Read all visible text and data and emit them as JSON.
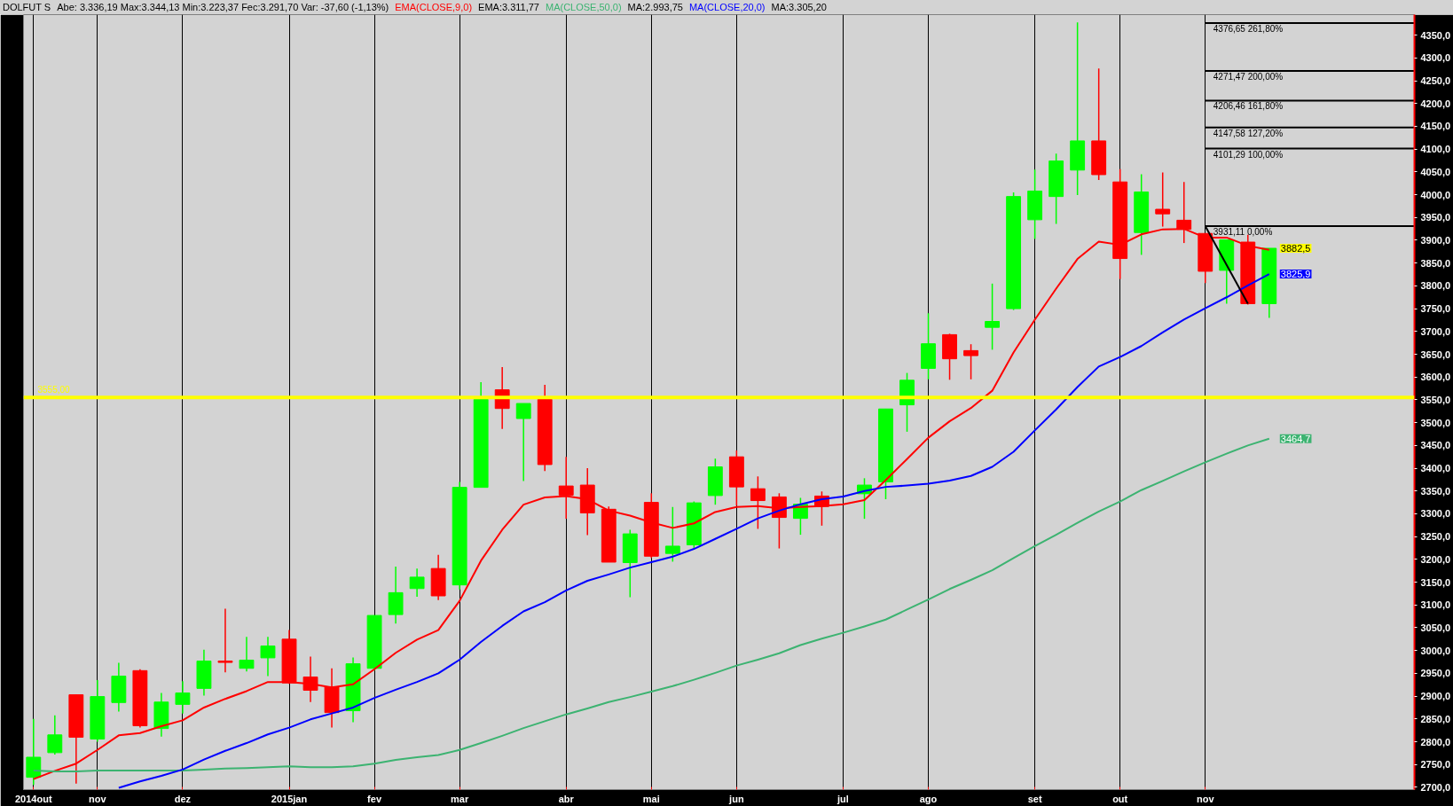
{
  "chart_data": {
    "type": "candlestick",
    "title": "DOLFUT S",
    "subtitle": "Abe: 3.336,19 Max:3.344,13 Min:3.223,37 Fec:3.291,70 Var: -37,60 (-1,13%)",
    "x": [
      "2014-10-13",
      "2014-10-20",
      "2014-10-27",
      "2014-11-03",
      "2014-11-10",
      "2014-11-17",
      "2014-11-24",
      "2014-12-01",
      "2014-12-08",
      "2014-12-15",
      "2014-12-22",
      "2014-12-29",
      "2015-01-05",
      "2015-01-12",
      "2015-01-19",
      "2015-01-26",
      "2015-02-02",
      "2015-02-09",
      "2015-02-16",
      "2015-02-23",
      "2015-03-02",
      "2015-03-09",
      "2015-03-16",
      "2015-03-23",
      "2015-03-30",
      "2015-04-06",
      "2015-04-13",
      "2015-04-20",
      "2015-04-27",
      "2015-05-04",
      "2015-05-11",
      "2015-05-18",
      "2015-05-25",
      "2015-06-01",
      "2015-06-08",
      "2015-06-15",
      "2015-06-22",
      "2015-06-29",
      "2015-07-06",
      "2015-07-13",
      "2015-07-20",
      "2015-07-27",
      "2015-08-03",
      "2015-08-10",
      "2015-08-17",
      "2015-08-24",
      "2015-08-31",
      "2015-09-07",
      "2015-09-14",
      "2015-09-21",
      "2015-09-28",
      "2015-10-05",
      "2015-10-12",
      "2015-10-19",
      "2015-10-26",
      "2015-11-02",
      "2015-11-09",
      "2015-11-16",
      "2015-11-23"
    ],
    "series": [
      {
        "ohlc": [
          [
            2722,
            2850,
            2705,
            2766
          ],
          [
            2776,
            2858,
            2772,
            2815
          ],
          [
            2903,
            2903,
            2708,
            2810
          ],
          [
            2806,
            2935,
            2800,
            2899
          ],
          [
            2886,
            2973,
            2866,
            2944
          ],
          [
            2956,
            2959,
            2831,
            2835
          ],
          [
            2829,
            2907,
            2811,
            2887
          ],
          [
            2882,
            2933,
            2862,
            2907
          ],
          [
            2917,
            3002,
            2901,
            2977
          ],
          [
            2977,
            3092,
            2952,
            2974
          ],
          [
            2961,
            3030,
            2954,
            2979
          ],
          [
            2984,
            3030,
            2944,
            3010
          ],
          [
            3025,
            3045,
            2927,
            2929
          ],
          [
            2942,
            2987,
            2887,
            2913
          ],
          [
            2920,
            2961,
            2831,
            2864
          ],
          [
            2868,
            2985,
            2843,
            2971
          ],
          [
            2961,
            3077,
            2956,
            3077
          ],
          [
            3079,
            3184,
            3059,
            3127
          ],
          [
            3136,
            3180,
            3118,
            3161
          ],
          [
            3180,
            3210,
            3111,
            3120
          ],
          [
            3144,
            3370,
            3134,
            3358
          ],
          [
            3358,
            3589,
            3358,
            3551
          ],
          [
            3572,
            3622,
            3486,
            3531
          ],
          [
            3509,
            3542,
            3372,
            3542
          ],
          [
            3551,
            3583,
            3394,
            3408
          ],
          [
            3361,
            3425,
            3289,
            3341
          ],
          [
            3363,
            3400,
            3253,
            3302
          ],
          [
            3310,
            3316,
            3194,
            3194
          ],
          [
            3193,
            3265,
            3117,
            3256
          ],
          [
            3325,
            3345,
            3203,
            3207
          ],
          [
            3213,
            3315,
            3195,
            3229
          ],
          [
            3232,
            3327,
            3225,
            3324
          ],
          [
            3340,
            3421,
            3320,
            3403
          ],
          [
            3425,
            3439,
            3318,
            3359
          ],
          [
            3355,
            3382,
            3267,
            3329
          ],
          [
            3337,
            3345,
            3224,
            3292
          ],
          [
            3290,
            3335,
            3254,
            3321
          ],
          [
            3339,
            3349,
            3274,
            3316
          ],
          null,
          [
            3344,
            3378,
            3289,
            3363
          ],
          [
            3370,
            3530,
            3332,
            3530
          ],
          [
            3539,
            3609,
            3480,
            3593
          ],
          [
            3619,
            3740,
            3595,
            3673
          ],
          [
            3693,
            3695,
            3594,
            3640
          ],
          [
            3658,
            3672,
            3595,
            3647
          ],
          [
            3709,
            3805,
            3660,
            3722
          ],
          [
            3750,
            4005,
            3747,
            3996
          ],
          [
            3945,
            4055,
            3903,
            4008
          ],
          [
            3996,
            4090,
            3936,
            4074
          ],
          [
            4054,
            4378,
            3999,
            4118
          ],
          [
            4118,
            4277,
            4032,
            4044
          ],
          [
            4028,
            4056,
            3815,
            3860
          ],
          [
            3917,
            4045,
            3868,
            4006
          ],
          [
            3968,
            4049,
            3930,
            3958
          ],
          [
            3944,
            4028,
            3894,
            3924
          ],
          [
            3915,
            3915,
            3806,
            3832
          ],
          [
            3834,
            3901,
            3761,
            3901
          ],
          [
            3896,
            3912,
            3759,
            3761
          ],
          [
            3761,
            3882.5,
            3730,
            3882.5
          ]
        ],
        "colors": [
          "#00ff00",
          "#00ff00",
          "#ff0000",
          "#00ff00",
          "#00ff00",
          "#ff0000",
          "#00ff00",
          "#00ff00",
          "#00ff00",
          "#ff0000",
          "#00ff00",
          "#00ff00",
          "#ff0000",
          "#ff0000",
          "#ff0000",
          "#00ff00",
          "#00ff00",
          "#00ff00",
          "#00ff00",
          "#ff0000",
          "#00ff00",
          "#00ff00",
          "#ff0000",
          "#00ff00",
          "#ff0000",
          "#ff0000",
          "#ff0000",
          "#ff0000",
          "#00ff00",
          "#ff0000",
          "#00ff00",
          "#00ff00",
          "#00ff00",
          "#ff0000",
          "#ff0000",
          "#ff0000",
          "#00ff00",
          "#ff0000",
          null,
          "#00ff00",
          "#00ff00",
          "#00ff00",
          "#00ff00",
          "#ff0000",
          "#ff0000",
          "#00ff00",
          "#00ff00",
          "#00ff00",
          "#00ff00",
          "#00ff00",
          "#ff0000",
          "#ff0000",
          "#00ff00",
          "#ff0000",
          "#ff0000",
          "#ff0000",
          "#00ff00",
          "#ff0000",
          "#00ff00"
        ],
        "value_labels": [
          null,
          null,
          null,
          null,
          null,
          null,
          null,
          null,
          null,
          null,
          null,
          null,
          null,
          null,
          null,
          null,
          null,
          null,
          null,
          null,
          null,
          null,
          null,
          null,
          null,
          null,
          null,
          null,
          null,
          null,
          null,
          null,
          null,
          null,
          null,
          null,
          null,
          null,
          null,
          null,
          null,
          null,
          null,
          null,
          null,
          null,
          null,
          null,
          null,
          null,
          null,
          null,
          null,
          null,
          null,
          null,
          null,
          null,
          "3882,5"
        ]
      },
      {
        "type": "line",
        "name": "EMA(CLOSE,9,0)",
        "color": "#ff0000",
        "values": [
          2718,
          2736,
          2752,
          2782,
          2814,
          2819,
          2834,
          2847,
          2875,
          2894,
          2911,
          2931,
          2931,
          2927,
          2919,
          2926,
          2959,
          2995,
          3024,
          3045,
          3109,
          3197,
          3265,
          3320,
          3336,
          3339,
          3332,
          3307,
          3296,
          3281,
          3269,
          3279,
          3304,
          3315,
          3317,
          3312,
          3315,
          3317,
          3321,
          3330,
          3374,
          3420,
          3467,
          3503,
          3532,
          3570,
          3654,
          3726,
          3794,
          3859,
          3897,
          3890,
          3913,
          3924,
          3925,
          3906,
          3906,
          3888,
          3879
        ]
      },
      {
        "type": "line",
        "name": "MA(CLOSE,50,0)",
        "color": "#3cb371",
        "values": [
          2737,
          2735,
          2735,
          2737,
          2737,
          2737,
          2737,
          2737,
          2739,
          2741,
          2742,
          2744,
          2746,
          2744,
          2744,
          2746,
          2752,
          2760,
          2766,
          2771,
          2782,
          2797,
          2813,
          2830,
          2845,
          2860,
          2873,
          2887,
          2898,
          2910,
          2922,
          2936,
          2951,
          2967,
          2980,
          2994,
          3012,
          3026,
          3039,
          3053,
          3068,
          3090,
          3112,
          3135,
          3155,
          3176,
          3203,
          3229,
          3254,
          3280,
          3305,
          3327,
          3352,
          3372,
          3393,
          3413,
          3432,
          3450,
          3464.7
        ],
        "value_labels": [
          null,
          null,
          null,
          null,
          null,
          null,
          null,
          null,
          null,
          null,
          null,
          null,
          null,
          null,
          null,
          null,
          null,
          null,
          null,
          null,
          null,
          null,
          null,
          null,
          null,
          null,
          null,
          null,
          null,
          null,
          null,
          null,
          null,
          null,
          null,
          null,
          null,
          null,
          null,
          null,
          null,
          null,
          null,
          null,
          null,
          null,
          null,
          null,
          null,
          null,
          null,
          null,
          null,
          null,
          null,
          null,
          null,
          null,
          "3464,7"
        ]
      },
      {
        "type": "line",
        "name": "MA(CLOSE,20,0)",
        "color": "#0000ff",
        "values": [
          null,
          null,
          null,
          null,
          2699,
          2713,
          2725,
          2739,
          2761,
          2780,
          2797,
          2816,
          2831,
          2849,
          2862,
          2875,
          2896,
          2914,
          2931,
          2950,
          2980,
          3019,
          3054,
          3086,
          3106,
          3132,
          3153,
          3167,
          3182,
          3194,
          3206,
          3223,
          3245,
          3267,
          3290,
          3307,
          3321,
          3332,
          3338,
          3350,
          3359,
          3362,
          3366,
          3373,
          3383,
          3403,
          3436,
          3483,
          3529,
          3578,
          3623,
          3644,
          3668,
          3698,
          3726,
          3751,
          3775,
          3801,
          3825.9
        ],
        "value_labels": [
          null,
          null,
          null,
          null,
          null,
          null,
          null,
          null,
          null,
          null,
          null,
          null,
          null,
          null,
          null,
          null,
          null,
          null,
          null,
          null,
          null,
          null,
          null,
          null,
          null,
          null,
          null,
          null,
          null,
          null,
          null,
          null,
          null,
          null,
          null,
          null,
          null,
          null,
          null,
          null,
          null,
          null,
          null,
          null,
          null,
          null,
          null,
          null,
          null,
          null,
          null,
          null,
          null,
          null,
          null,
          null,
          null,
          null,
          "3825,9"
        ]
      },
      {
        "type": "line",
        "color": "#000000",
        "x": [
          "2015-11-02",
          "2016-01-09T17:00"
        ],
        "values": [
          4376.65,
          4376.65
        ]
      },
      {
        "type": "line",
        "color": "#000000",
        "x": [
          "2015-11-02",
          "2016-01-09T17:00"
        ],
        "values": [
          4271.47,
          4271.47
        ]
      },
      {
        "type": "line",
        "color": "#000000",
        "x": [
          "2015-11-02",
          "2016-01-09T17:00"
        ],
        "values": [
          4206.46,
          4206.46
        ]
      },
      {
        "type": "line",
        "color": "#000000",
        "x": [
          "2015-11-02",
          "2016-01-09T17:00"
        ],
        "values": [
          4147.58,
          4147.58
        ]
      },
      {
        "type": "line",
        "color": "#000000",
        "x": [
          "2015-11-02",
          "2016-01-09T17:00"
        ],
        "values": [
          4101.29,
          4101.29
        ]
      },
      {
        "type": "line",
        "color": "#000000",
        "x": [
          "2015-11-02",
          "2016-01-09T17:00"
        ],
        "values": [
          3931.11,
          3931.11
        ]
      },
      {
        "type": "line",
        "color": "#000000",
        "x": [
          "2015-11-02",
          "2015-11-16"
        ],
        "values": [
          3931.11,
          3761
        ]
      }
    ],
    "xlim": [
      "2014-10-09T17:00",
      "2016-01-09T17:00"
    ],
    "xticks": [
      {
        "value": "2014-10-13",
        "label": "2014out"
      },
      {
        "value": "2014-11-03",
        "label": "nov"
      },
      {
        "value": "2014-12-01",
        "label": "dez"
      },
      {
        "value": "2015-01-05",
        "label": "2015jan"
      },
      {
        "value": "2015-02-02",
        "label": "fev"
      },
      {
        "value": "2015-03-02",
        "label": "mar"
      },
      {
        "value": "2015-04-06",
        "label": "abr"
      },
      {
        "value": "2015-05-04",
        "label": "mai"
      },
      {
        "value": "2015-06-01",
        "label": "jun"
      },
      {
        "value": "2015-07-06",
        "label": "jul"
      },
      {
        "value": "2015-08-03",
        "label": "ago"
      },
      {
        "value": "2015-09-07",
        "label": "set"
      },
      {
        "value": "2015-10-05",
        "label": "out"
      },
      {
        "value": "2015-11-02",
        "label": "nov"
      }
    ],
    "ylim": [
      2695,
      4395
    ],
    "yticks": [
      {
        "value": 2700,
        "label": "2700,0"
      },
      {
        "value": 2750,
        "label": "2750,0"
      },
      {
        "value": 2800,
        "label": "2800,0"
      },
      {
        "value": 2850,
        "label": "2850,0"
      },
      {
        "value": 2900,
        "label": "2900,0"
      },
      {
        "value": 2950,
        "label": "2950,0"
      },
      {
        "value": 3000,
        "label": "3000,0"
      },
      {
        "value": 3050,
        "label": "3050,0"
      },
      {
        "value": 3100,
        "label": "3100,0"
      },
      {
        "value": 3150,
        "label": "3150,0"
      },
      {
        "value": 3200,
        "label": "3200,0"
      },
      {
        "value": 3250,
        "label": "3250,0"
      },
      {
        "value": 3300,
        "label": "3300,0"
      },
      {
        "value": 3350,
        "label": "3350,0"
      },
      {
        "value": 3400,
        "label": "3400,0"
      },
      {
        "value": 3450,
        "label": "3450,0"
      },
      {
        "value": 3500,
        "label": "3500,0"
      },
      {
        "value": 3550,
        "label": "3550,0"
      },
      {
        "value": 3600,
        "label": "3600,0"
      },
      {
        "value": 3650,
        "label": "3650,0"
      },
      {
        "value": 3700,
        "label": "3700,0"
      },
      {
        "value": 3750,
        "label": "3750,0"
      },
      {
        "value": 3800,
        "label": "3800,0"
      },
      {
        "value": 3850,
        "label": "3850,0"
      },
      {
        "value": 3900,
        "label": "3900,0"
      },
      {
        "value": 3950,
        "label": "3950,0"
      },
      {
        "value": 4000,
        "label": "4000,0"
      },
      {
        "value": 4050,
        "label": "4050,0"
      },
      {
        "value": 4100,
        "label": "4100,0"
      },
      {
        "value": 4150,
        "label": "4150,0"
      },
      {
        "value": 4200,
        "label": "4200,0"
      },
      {
        "value": 4250,
        "label": "4250,0"
      },
      {
        "value": 4300,
        "label": "4300,0"
      },
      {
        "value": 4350,
        "label": "4350,0"
      }
    ],
    "grid": "x",
    "legend": "top left",
    "ref_lines": [
      {
        "axis": "y",
        "value": 3555,
        "label": "3555,00",
        "color": "#ffff00"
      }
    ],
    "annotations": [
      "EMA:3.311,77",
      "MA:2.993,75",
      "MA:3.305,20",
      {
        "text": "4376,65 261,80%",
        "x": "2015-11-02",
        "y": 4376.65
      },
      {
        "text": "4271,47 200,00%",
        "x": "2015-11-02",
        "y": 4271.47
      },
      {
        "text": "4206,46 161,80%",
        "x": "2015-11-02",
        "y": 4206.46
      },
      {
        "text": "4147,58 127,20%",
        "x": "2015-11-02",
        "y": 4147.58
      },
      {
        "text": "4101,29 100,00%",
        "x": "2015-11-02",
        "y": 4101.29
      },
      {
        "text": "3931,11 0,00%",
        "x": "2015-11-02",
        "y": 3931.11
      }
    ]
  }
}
